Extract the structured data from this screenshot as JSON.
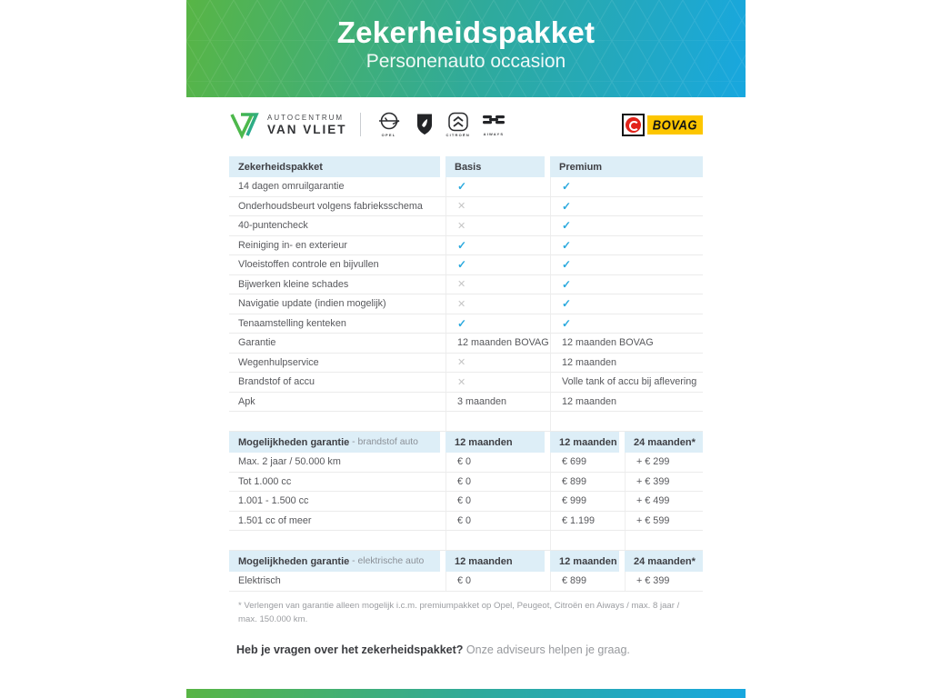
{
  "hero": {
    "title": "Zekerheidspakket",
    "subtitle": "Personenauto occasion"
  },
  "branding": {
    "dealer": {
      "line1": "AUTOCENTRUM",
      "line2": "VAN VLIET"
    },
    "brands": [
      {
        "icon": "opel-logo",
        "label": "OPEL"
      },
      {
        "icon": "peugeot-logo",
        "label": ""
      },
      {
        "icon": "citroen-logo",
        "label": "CITROËN"
      },
      {
        "icon": "aiways-logo",
        "label": "AIWAYS"
      }
    ],
    "bovag_label": "BOVAG"
  },
  "package_table": {
    "header": {
      "label": "Zekerheidspakket",
      "col1": "Basis",
      "col2": "Premium"
    },
    "rows": [
      [
        "14 dagen omruilgarantie",
        "✓",
        "✓"
      ],
      [
        "Onderhoudsbeurt volgens fabrieksschema",
        "✕",
        "✓"
      ],
      [
        "40-puntencheck",
        "✕",
        "✓"
      ],
      [
        "Reiniging in- en exterieur",
        "✓",
        "✓"
      ],
      [
        "Vloeistoffen controle en bijvullen",
        "✓",
        "✓"
      ],
      [
        "Bijwerken kleine schades",
        "✕",
        "✓"
      ],
      [
        "Navigatie update (indien mogelijk)",
        "✕",
        "✓"
      ],
      [
        "Tenaamstelling kenteken",
        "✓",
        "✓"
      ],
      [
        "Garantie",
        "12 maanden BOVAG",
        "12 maanden BOVAG"
      ],
      [
        "Wegenhulpservice",
        "✕",
        "12 maanden"
      ],
      [
        "Brandstof of accu",
        "✕",
        "Volle tank of accu bij aflevering"
      ],
      [
        "Apk",
        "3 maanden",
        "12 maanden"
      ]
    ]
  },
  "fuel_table": {
    "header": {
      "label_bold": "Mogelijkheden garantie",
      "label_light": " - brandstof auto",
      "col1": "12 maanden",
      "col2": "12 maanden",
      "col3": "24 maanden*"
    },
    "rows": [
      [
        "Max. 2 jaar / 50.000 km",
        "€ 0",
        "€ 699",
        "+ € 299"
      ],
      [
        "Tot 1.000 cc",
        "€ 0",
        "€ 899",
        "+ € 399"
      ],
      [
        "1.001 - 1.500 cc",
        "€ 0",
        "€ 999",
        "+ € 499"
      ],
      [
        "1.501 cc of meer",
        "€ 0",
        "€ 1.199",
        "+ € 599"
      ]
    ]
  },
  "electric_table": {
    "header": {
      "label_bold": "Mogelijkheden garantie",
      "label_light": " - elektrische auto",
      "col1": "12 maanden",
      "col2": "12 maanden",
      "col3": "24 maanden*"
    },
    "rows": [
      [
        "Elektrisch",
        "€ 0",
        "€ 899",
        "+ € 399"
      ]
    ]
  },
  "footnote": "* Verlengen van garantie alleen mogelijk i.c.m. premiumpakket op Opel, Peugeot, Citroën en Aiways / max. 8 jaar / max. 150.000 km.",
  "question": {
    "bold": "Heb je vragen over het zekerheidspakket?",
    "normal": " Onze adviseurs helpen je graag."
  },
  "colors": {
    "gradient_green": "#58b545",
    "gradient_teal": "#2faa9b",
    "gradient_blue": "#18a7df",
    "check": "#2aa9de",
    "cross": "#c6c6c6",
    "table_header_bg": "#ddeef7",
    "bovag_yellow": "#fdc600",
    "bovag_red": "#e2231a"
  }
}
